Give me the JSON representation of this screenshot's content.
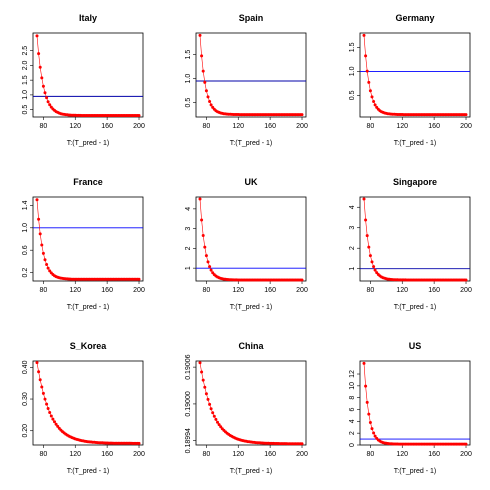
{
  "charts": [
    {
      "title": "Italy",
      "xlabel": "T:(T_pred - 1)",
      "x_start": 72,
      "x_end": 200,
      "start_value": 3.0,
      "end_value": 0.3,
      "decay": 0.25,
      "hline": 0.95,
      "hline_color": "#0000aa",
      "ylim": [
        0.25,
        3.1
      ],
      "yticks": [
        0.5,
        1.0,
        1.5,
        2.0,
        2.5
      ],
      "ytick_labels": [
        "0.5",
        "1.0",
        "1.5",
        "2.0",
        "2.5"
      ],
      "xticks": [
        80,
        120,
        160,
        200
      ]
    },
    {
      "title": "Spain",
      "xlabel": "T:(T_pred - 1)",
      "x_start": 72,
      "x_end": 200,
      "start_value": 1.9,
      "end_value": 0.25,
      "decay": 0.3,
      "hline": 0.95,
      "hline_color": "#0000aa",
      "ylim": [
        0.2,
        1.95
      ],
      "yticks": [
        0.5,
        1.0,
        1.5
      ],
      "ytick_labels": [
        "0.5",
        "1.0",
        "1.5"
      ],
      "xticks": [
        80,
        120,
        160,
        200
      ]
    },
    {
      "title": "Germany",
      "xlabel": "T:(T_pred - 1)",
      "x_start": 72,
      "x_end": 200,
      "start_value": 1.75,
      "end_value": 0.1,
      "decay": 0.3,
      "hline": 1.0,
      "hline_color": "#0000ff",
      "ylim": [
        0.05,
        1.8
      ],
      "yticks": [
        0.5,
        1.0,
        1.5
      ],
      "ytick_labels": [
        "0.5",
        "1.0",
        "1.5"
      ],
      "xticks": [
        80,
        120,
        160,
        200
      ]
    },
    {
      "title": "France",
      "xlabel": "T:(T_pred - 1)",
      "x_start": 72,
      "x_end": 200,
      "start_value": 1.5,
      "end_value": 0.08,
      "decay": 0.28,
      "hline": 1.0,
      "hline_color": "#0000ff",
      "ylim": [
        0.05,
        1.55
      ],
      "yticks": [
        0.2,
        0.6,
        1.0,
        1.4
      ],
      "ytick_labels": [
        "0.2",
        "0.6",
        "1.0",
        "1.4"
      ],
      "xticks": [
        80,
        120,
        160,
        200
      ]
    },
    {
      "title": "UK",
      "xlabel": "T:(T_pred - 1)",
      "x_start": 72,
      "x_end": 200,
      "start_value": 4.5,
      "end_value": 0.4,
      "decay": 0.3,
      "hline": 1.0,
      "hline_color": "#0000ff",
      "ylim": [
        0.35,
        4.6
      ],
      "yticks": [
        1,
        2,
        3,
        4
      ],
      "ytick_labels": [
        "1",
        "2",
        "3",
        "4"
      ],
      "xticks": [
        80,
        120,
        160,
        200
      ]
    },
    {
      "title": "Singapore",
      "xlabel": "T:(T_pred - 1)",
      "x_start": 72,
      "x_end": 200,
      "start_value": 4.4,
      "end_value": 0.45,
      "decay": 0.3,
      "hline": 1.0,
      "hline_color": "#0000aa",
      "ylim": [
        0.4,
        4.5
      ],
      "yticks": [
        1,
        2,
        3,
        4
      ],
      "ytick_labels": [
        "1",
        "2",
        "3",
        "4"
      ],
      "xticks": [
        80,
        120,
        160,
        200
      ]
    },
    {
      "title": "S_Korea",
      "xlabel": "T:(T_pred - 1)",
      "x_start": 72,
      "x_end": 200,
      "start_value": 0.415,
      "end_value": 0.16,
      "decay": 0.12,
      "hline": null,
      "hline_color": "#0000ff",
      "ylim": [
        0.155,
        0.42
      ],
      "yticks": [
        0.2,
        0.3,
        0.4
      ],
      "ytick_labels": [
        "0.20",
        "0.30",
        "0.40"
      ],
      "xticks": [
        80,
        120,
        160,
        200
      ]
    },
    {
      "title": "China",
      "xlabel": "T:(T_pred - 1)",
      "x_start": 72,
      "x_end": 200,
      "start_value": 0.190067,
      "end_value": 0.189935,
      "decay": 0.12,
      "hline": null,
      "hline_color": "#0000ff",
      "ylim": [
        0.189933,
        0.19007
      ],
      "yticks": [
        0.18994,
        0.19,
        0.19006
      ],
      "ytick_labels": [
        "0.18994",
        "0.19000",
        "0.19006"
      ],
      "xticks": [
        80,
        120,
        160,
        200
      ]
    },
    {
      "title": "US",
      "xlabel": "T:(T_pred - 1)",
      "x_start": 72,
      "x_end": 200,
      "start_value": 13.8,
      "end_value": 0.15,
      "decay": 0.33,
      "hline": 1.0,
      "hline_color": "#0000ff",
      "ylim": [
        0.0,
        14.2
      ],
      "yticks": [
        0,
        2,
        4,
        6,
        8,
        10,
        12
      ],
      "ytick_labels": [
        "0",
        "2",
        "4",
        "6",
        "8",
        "10",
        "12"
      ],
      "xticks": [
        80,
        120,
        160,
        200
      ]
    }
  ],
  "colors": {
    "points": "#ff0000",
    "axes": "#000000"
  }
}
